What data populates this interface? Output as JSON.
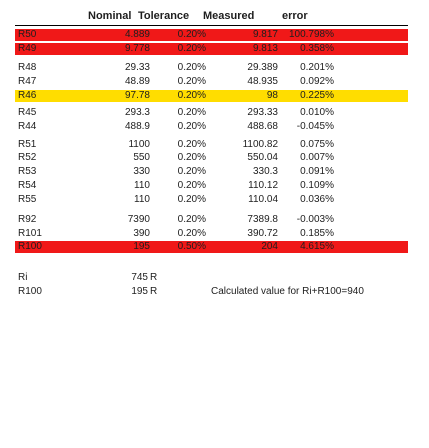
{
  "headers": [
    "Nominal",
    "Tolerance",
    "Measured",
    "error"
  ],
  "colors": {
    "red": "#f01818",
    "yellow": "#ffdd00",
    "gridline": "#d9d9d9"
  },
  "rows": [
    {
      "label": "R50",
      "nominal": "4.889",
      "tolerance": "0.20%",
      "measured": "9.817",
      "error": "100.798%",
      "highlight": "red"
    },
    {
      "label": "R49",
      "nominal": "9.778",
      "tolerance": "0.20%",
      "measured": "9.813",
      "error": "0.358%",
      "highlight": "red"
    },
    {
      "label": "R48",
      "nominal": "29.33",
      "tolerance": "0.20%",
      "measured": "29.389",
      "error": "0.201%"
    },
    {
      "label": "R47",
      "nominal": "48.89",
      "tolerance": "0.20%",
      "measured": "48.935",
      "error": "0.092%"
    },
    {
      "label": "R46",
      "nominal": "97.78",
      "tolerance": "0.20%",
      "measured": "98",
      "error": "0.225%",
      "highlight": "yellow"
    },
    {
      "label": "R45",
      "nominal": "293.3",
      "tolerance": "0.20%",
      "measured": "293.33",
      "error": "0.010%"
    },
    {
      "label": "R44",
      "nominal": "488.9",
      "tolerance": "0.20%",
      "measured": "488.68",
      "error": "-0.045%"
    },
    {
      "label": "R51",
      "nominal": "1100",
      "tolerance": "0.20%",
      "measured": "1100.82",
      "error": "0.075%"
    },
    {
      "label": "R52",
      "nominal": "550",
      "tolerance": "0.20%",
      "measured": "550.04",
      "error": "0.007%"
    },
    {
      "label": "R53",
      "nominal": "330",
      "tolerance": "0.20%",
      "measured": "330.3",
      "error": "0.091%"
    },
    {
      "label": "R54",
      "nominal": "110",
      "tolerance": "0.20%",
      "measured": "110.12",
      "error": "0.109%"
    },
    {
      "label": "R55",
      "nominal": "110",
      "tolerance": "0.20%",
      "measured": "110.04",
      "error": "0.036%"
    },
    {
      "label": "R92",
      "nominal": "7390",
      "tolerance": "0.20%",
      "measured": "7389.8",
      "error": "-0.003%"
    },
    {
      "label": "R101",
      "nominal": "390",
      "tolerance": "0.20%",
      "measured": "390.72",
      "error": "0.185%"
    },
    {
      "label": "R100",
      "nominal": "195",
      "tolerance": "0.50%",
      "measured": "204",
      "error": "4.615%",
      "highlight": "red"
    }
  ],
  "footer": [
    {
      "label": "Ri",
      "value": "745",
      "unit": "R"
    },
    {
      "label": "R100",
      "value": "195",
      "unit": "R",
      "note": "Calculated value for Ri+R100=940"
    }
  ]
}
